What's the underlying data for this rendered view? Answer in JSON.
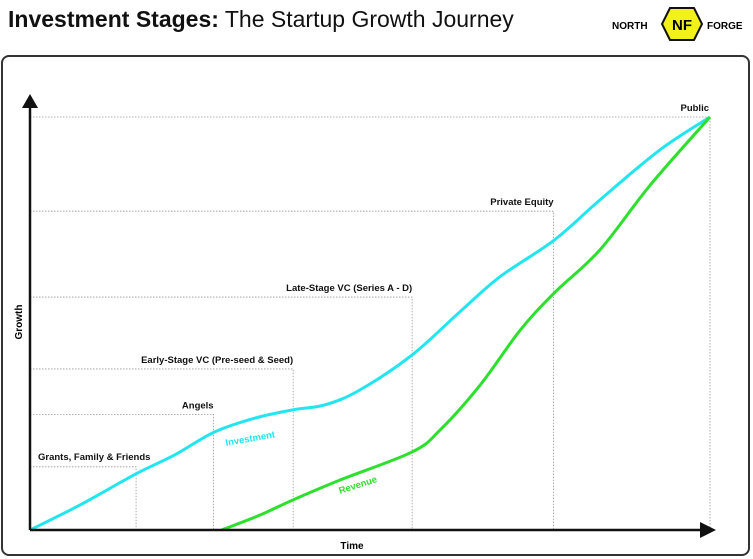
{
  "header": {
    "title_bold": "Investment Stages:",
    "title_rest": " The Startup Growth Journey"
  },
  "logo": {
    "left": "NORTH",
    "right": "FORGE",
    "mark": "NF"
  },
  "chart_data": {
    "type": "line",
    "xlabel": "Time",
    "ylabel": "Growth",
    "xlim": [
      0,
      100
    ],
    "ylim": [
      0,
      100
    ],
    "stages": [
      {
        "label": "Grants, Family & Friends",
        "x": 15.6,
        "y": 15.3
      },
      {
        "label": "Angels",
        "x": 27,
        "y": 28
      },
      {
        "label": "Early-Stage VC (Pre-seed & Seed)",
        "x": 38.7,
        "y": 39
      },
      {
        "label": "Late-Stage VC (Series A - D)",
        "x": 56.2,
        "y": 56.4
      },
      {
        "label": "Private Equity",
        "x": 77,
        "y": 77.2
      },
      {
        "label": "Public",
        "x": 100,
        "y": 100
      }
    ],
    "series": [
      {
        "name": "Investment",
        "color": "#22e5f0",
        "points": [
          [
            0,
            0
          ],
          [
            7.4,
            6.1
          ],
          [
            15.6,
            13.6
          ],
          [
            21.3,
            18.2
          ],
          [
            27.1,
            23.7
          ],
          [
            33.1,
            27.1
          ],
          [
            38.7,
            29.1
          ],
          [
            43.4,
            30.3
          ],
          [
            48.5,
            33.9
          ],
          [
            56.2,
            42.4
          ],
          [
            63.2,
            52.8
          ],
          [
            69.1,
            61.3
          ],
          [
            77.1,
            70.2
          ],
          [
            83.8,
            79.9
          ],
          [
            92.6,
            92
          ],
          [
            100,
            100
          ]
        ]
      },
      {
        "name": "Revenue",
        "color": "#2ee02e",
        "points": [
          [
            28.2,
            0
          ],
          [
            33.8,
            3.6
          ],
          [
            38.7,
            7.3
          ],
          [
            45.6,
            12.1
          ],
          [
            56.2,
            18.9
          ],
          [
            60.3,
            24.2
          ],
          [
            66.2,
            35.1
          ],
          [
            72.1,
            48.4
          ],
          [
            77.1,
            57.4
          ],
          [
            83.8,
            67.8
          ],
          [
            91.2,
            83.5
          ],
          [
            100,
            100
          ]
        ]
      }
    ]
  }
}
